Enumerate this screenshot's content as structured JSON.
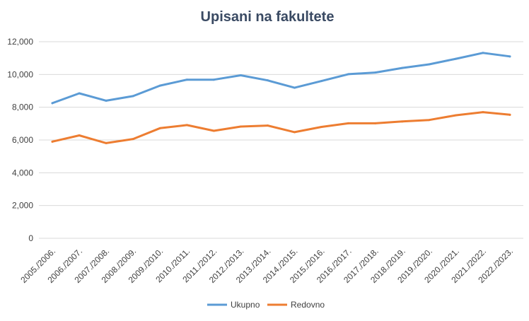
{
  "chart_data": {
    "type": "line",
    "title": "Upisani na fakultete",
    "xlabel": "",
    "ylabel": "",
    "ylim": [
      0,
      12000
    ],
    "y_ticks": [
      "0",
      "2,000",
      "4,000",
      "6,000",
      "8,000",
      "10,000",
      "12,000"
    ],
    "grid": true,
    "legend_position": "bottom",
    "categories": [
      "2005./2006.",
      "2006./2007.",
      "2007./2008.",
      "2008./2009.",
      "2009./2010.",
      "2010./2011.",
      "2011./2012.",
      "2012./2013.",
      "2013./2014.",
      "2014./2015.",
      "2015./2016.",
      "2016./2017.",
      "2017./2018.",
      "2018./2019.",
      "2019./2020.",
      "2020./2021.",
      "2021./2022.",
      "2022./2023."
    ],
    "series": [
      {
        "name": "Ukupno",
        "color": "#5b9bd5",
        "values": [
          8250,
          8850,
          8400,
          8680,
          9320,
          9680,
          9680,
          9950,
          9640,
          9190,
          9600,
          10020,
          10120,
          10400,
          10620,
          10960,
          11320,
          11100
        ]
      },
      {
        "name": "Redovno",
        "color": "#ed7d31",
        "values": [
          5900,
          6280,
          5810,
          6060,
          6720,
          6910,
          6560,
          6820,
          6880,
          6480,
          6800,
          7020,
          7020,
          7130,
          7220,
          7510,
          7700,
          7540
        ]
      }
    ]
  }
}
